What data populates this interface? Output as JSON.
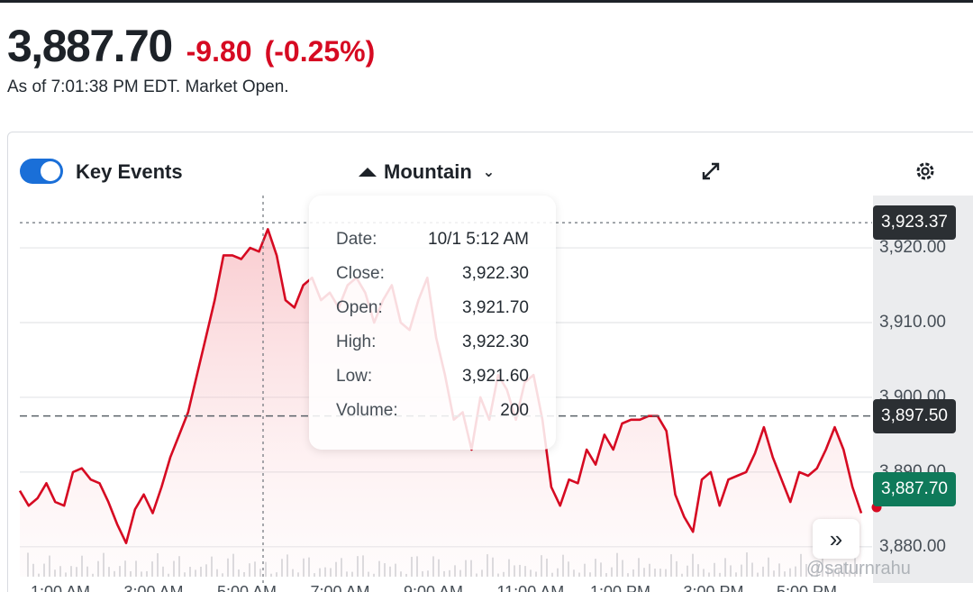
{
  "quote": {
    "price": "3,887.70",
    "change": "-9.80",
    "change_pct": "(-0.25%)",
    "as_of": "As of 7:01:38 PM EDT. Market Open."
  },
  "toolbar": {
    "key_events_label": "Key Events",
    "key_events_on": true,
    "chart_type_label": "Mountain"
  },
  "tooltip": {
    "rows": [
      {
        "label": "Date:",
        "value": "10/1 5:12 AM"
      },
      {
        "label": "Close:",
        "value": "3,922.30"
      },
      {
        "label": "Open:",
        "value": "3,921.70"
      },
      {
        "label": "High:",
        "value": "3,922.30"
      },
      {
        "label": "Low:",
        "value": "3,921.60"
      },
      {
        "label": "Volume:",
        "value": "200"
      }
    ]
  },
  "tags": {
    "crosshair_value": "3,923.37",
    "prev_close": "3,897.50",
    "last_price": "3,887.70"
  },
  "watermark": "@saturnrahu",
  "colors": {
    "line": "#d60a22",
    "toggle": "#1a6fd8",
    "last_tag": "#0f7a5a",
    "dark_tag": "#2b2f33"
  },
  "icons": {
    "expand": "expand-icon",
    "settings": "gear-icon",
    "scroll": "double-chevron-right-icon"
  },
  "chart_data": {
    "type": "area",
    "y_ticks": [
      "3,880.00",
      "3,890.00",
      "3,900.00",
      "3,910.00",
      "3,920.00"
    ],
    "x_ticks": [
      "1:00 AM",
      "3:00 AM",
      "5:00 AM",
      "7:00 AM",
      "9:00 AM",
      "11:00 AM",
      "1:00 PM",
      "3:00 PM",
      "5:00 PM"
    ],
    "ylim": [
      3876,
      3927
    ],
    "series": [
      {
        "points": [
          [
            0,
            3887.5
          ],
          [
            0.5,
            3885.5
          ],
          [
            1,
            3886.5
          ],
          [
            1.5,
            3888.5
          ],
          [
            2,
            3886
          ],
          [
            2.5,
            3885.5
          ],
          [
            3,
            3890
          ],
          [
            3.5,
            3890.5
          ],
          [
            4,
            3889
          ],
          [
            4.5,
            3888.5
          ],
          [
            5,
            3886
          ],
          [
            5.5,
            3883
          ],
          [
            6,
            3880.5
          ],
          [
            6.5,
            3885
          ],
          [
            7,
            3887
          ],
          [
            7.5,
            3884.5
          ],
          [
            8,
            3888
          ],
          [
            8.5,
            3892
          ],
          [
            9,
            3895
          ],
          [
            9.5,
            3898
          ],
          [
            10,
            3903
          ],
          [
            10.5,
            3908
          ],
          [
            11,
            3913
          ],
          [
            11.5,
            3919
          ],
          [
            12,
            3919
          ],
          [
            12.5,
            3918.5
          ],
          [
            13,
            3920
          ],
          [
            13.5,
            3919.5
          ],
          [
            14,
            3922.5
          ],
          [
            14.5,
            3919
          ],
          [
            15,
            3913
          ],
          [
            15.5,
            3912
          ],
          [
            16,
            3915
          ],
          [
            16.5,
            3916
          ],
          [
            17,
            3913
          ],
          [
            17.5,
            3914
          ],
          [
            18,
            3912
          ],
          [
            18.5,
            3915
          ],
          [
            19,
            3916
          ],
          [
            19.5,
            3914
          ],
          [
            20,
            3910
          ],
          [
            20.5,
            3913
          ],
          [
            21,
            3915
          ],
          [
            21.5,
            3910
          ],
          [
            22,
            3909
          ],
          [
            22.5,
            3913
          ],
          [
            23,
            3916
          ],
          [
            23.5,
            3908
          ],
          [
            24,
            3903
          ],
          [
            24.5,
            3897
          ],
          [
            25,
            3898
          ],
          [
            25.5,
            3893
          ],
          [
            26,
            3900
          ],
          [
            26.5,
            3897
          ],
          [
            27,
            3903
          ],
          [
            27.5,
            3901
          ],
          [
            28,
            3897
          ],
          [
            28.5,
            3902
          ],
          [
            29,
            3903
          ],
          [
            29.5,
            3897
          ],
          [
            30,
            3888
          ],
          [
            30.5,
            3885.5
          ],
          [
            31,
            3889
          ],
          [
            31.5,
            3888.5
          ],
          [
            32,
            3893
          ],
          [
            32.5,
            3891
          ],
          [
            33,
            3895
          ],
          [
            33.5,
            3893
          ],
          [
            34,
            3896.5
          ],
          [
            34.5,
            3897
          ],
          [
            35,
            3897
          ],
          [
            35.5,
            3897.5
          ],
          [
            36,
            3897.5
          ],
          [
            36.5,
            3895.5
          ],
          [
            37,
            3887
          ],
          [
            37.5,
            3884
          ],
          [
            38,
            3882
          ],
          [
            38.5,
            3889
          ],
          [
            39,
            3890
          ],
          [
            39.5,
            3885.5
          ],
          [
            40,
            3889
          ],
          [
            40.5,
            3889.5
          ],
          [
            41,
            3890
          ],
          [
            41.5,
            3892.5
          ],
          [
            42,
            3896
          ],
          [
            42.5,
            3892
          ],
          [
            43,
            3889
          ],
          [
            43.5,
            3886
          ],
          [
            44,
            3890
          ],
          [
            44.5,
            3889.5
          ],
          [
            45,
            3890.5
          ],
          [
            45.5,
            3893
          ],
          [
            46,
            3896
          ],
          [
            46.5,
            3893
          ],
          [
            47,
            3888
          ],
          [
            47.5,
            3884.5
          ]
        ]
      }
    ],
    "prev_close_value": 3897.5,
    "crosshair_value": 3923.37,
    "last_value": 3887.7
  }
}
